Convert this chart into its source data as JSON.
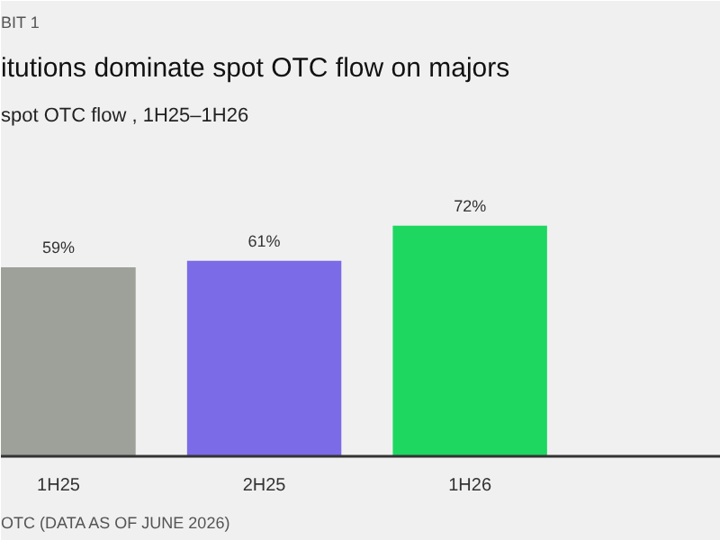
{
  "chart_data": {
    "type": "bar",
    "title": "itutions dominate spot OTC flow on majors",
    "subtitle": "spot OTC flow , 1H25–1H26",
    "annotations": [
      "BIT 1",
      "OTC (DATA AS OF JUNE 2026)"
    ],
    "categories": [
      "1H25",
      "2H25",
      "1H26"
    ],
    "values": [
      59,
      61,
      72
    ],
    "colors": [
      "#9ea09a",
      "#7b6be6",
      "#1ed760"
    ],
    "value_labels": [
      "59%",
      "61%",
      "72%"
    ],
    "ylim": [
      0,
      100
    ],
    "grid": false,
    "tick_labels": "x"
  }
}
